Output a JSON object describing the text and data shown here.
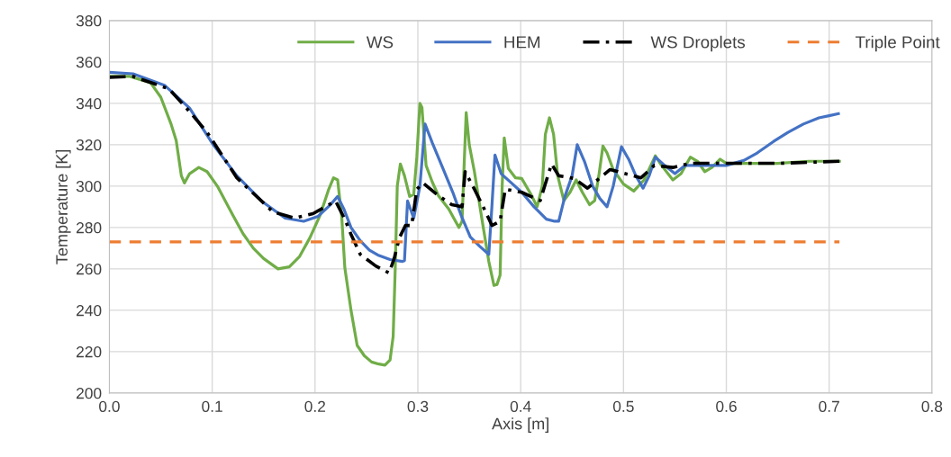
{
  "chart_data": {
    "type": "line",
    "xlabel": "Axis [m]",
    "ylabel": "Temperature [K]",
    "xlim": [
      0,
      0.8
    ],
    "ylim": [
      200,
      380
    ],
    "xticks": [
      {
        "value": 0,
        "label": "0.0"
      },
      0.1,
      0.2,
      0.3,
      0.4,
      0.5,
      0.6,
      0.7,
      0.8
    ],
    "yticks": [
      200,
      220,
      240,
      260,
      280,
      300,
      320,
      340,
      360,
      380
    ],
    "grid": true,
    "legend": "top",
    "marker": "none",
    "series": [
      {
        "name": "WS",
        "color": "#70ad47",
        "line_style": "solid",
        "x": [
          0,
          0.02,
          0.04,
          0.05,
          0.06,
          0.065,
          0.07,
          0.073,
          0.078,
          0.087,
          0.095,
          0.105,
          0.12,
          0.13,
          0.14,
          0.15,
          0.164,
          0.175,
          0.185,
          0.195,
          0.205,
          0.213,
          0.218,
          0.222,
          0.226,
          0.229,
          0.235,
          0.241,
          0.248,
          0.255,
          0.262,
          0.268,
          0.273,
          0.276,
          0.278,
          0.28,
          0.283,
          0.287,
          0.292,
          0.296,
          0.299,
          0.302,
          0.304,
          0.308,
          0.314,
          0.32,
          0.33,
          0.34,
          0.343,
          0.345,
          0.347,
          0.35,
          0.355,
          0.362,
          0.369,
          0.374,
          0.377,
          0.38,
          0.382,
          0.384,
          0.388,
          0.395,
          0.401,
          0.41,
          0.416,
          0.421,
          0.424,
          0.428,
          0.432,
          0.436,
          0.442,
          0.448,
          0.454,
          0.46,
          0.467,
          0.472,
          0.476,
          0.48,
          0.484,
          0.49,
          0.5,
          0.51,
          0.52,
          0.531,
          0.537,
          0.548,
          0.556,
          0.565,
          0.572,
          0.579,
          0.586,
          0.594,
          0.6,
          0.62,
          0.65,
          0.68,
          0.71
        ],
        "values": [
          353,
          353,
          350,
          343,
          330,
          322,
          305,
          301.5,
          306,
          309,
          307,
          300,
          286,
          277,
          270,
          265,
          260,
          261,
          266,
          275,
          286,
          298,
          304,
          303,
          285,
          260.5,
          240,
          223,
          218,
          215,
          214,
          213.5,
          216,
          227.4,
          260,
          300,
          310.7,
          305,
          295,
          296,
          314,
          340,
          338,
          310,
          302,
          295.4,
          289,
          280,
          283,
          310,
          335.5,
          320,
          307,
          285,
          263.6,
          252,
          252.5,
          257,
          300,
          323.3,
          308.5,
          304,
          303.7,
          296,
          290,
          300,
          325,
          333,
          325,
          305,
          293,
          297,
          303,
          297,
          291,
          293,
          305,
          319.4,
          316,
          308,
          301,
          297.6,
          303,
          314.6,
          310,
          303,
          306,
          314,
          312,
          307,
          309,
          313,
          311,
          311,
          311,
          312,
          312
        ]
      },
      {
        "name": "HEM",
        "color": "#4472c4",
        "line_style": "solid",
        "x": [
          0,
          0.023,
          0.054,
          0.078,
          0.101,
          0.124,
          0.148,
          0.171,
          0.189,
          0.203,
          0.215,
          0.222,
          0.228,
          0.235,
          0.244,
          0.253,
          0.261,
          0.273,
          0.285,
          0.287,
          0.29,
          0.296,
          0.302,
          0.307,
          0.314,
          0.324,
          0.334,
          0.342,
          0.351,
          0.36,
          0.369,
          0.372,
          0.375,
          0.381,
          0.391,
          0.401,
          0.413,
          0.425,
          0.433,
          0.437,
          0.443,
          0.45,
          0.455,
          0.462,
          0.47,
          0.477,
          0.484,
          0.49,
          0.498,
          0.505,
          0.512,
          0.519,
          0.525,
          0.531,
          0.54,
          0.55,
          0.56,
          0.58,
          0.6,
          0.617,
          0.63,
          0.646,
          0.66,
          0.675,
          0.69,
          0.7,
          0.709
        ],
        "values": [
          355,
          354.3,
          348.6,
          337.7,
          320,
          305,
          292.8,
          284.5,
          283,
          285.4,
          291,
          295,
          289,
          280,
          273.6,
          269,
          266.7,
          264.5,
          263.6,
          264,
          292.8,
          284.5,
          300,
          330,
          321,
          309,
          297,
          286,
          275.4,
          271,
          267,
          290,
          315,
          306,
          301.5,
          297,
          290,
          284,
          283,
          283,
          295,
          305,
          320,
          312,
          300,
          294,
          290,
          300,
          319,
          313,
          305,
          299,
          305,
          314,
          310,
          306,
          310,
          310,
          310,
          312.4,
          316,
          321.6,
          326,
          330,
          333,
          334,
          335
        ]
      },
      {
        "name": "WS Droplets",
        "color": "#000000",
        "line_style": "dashdot",
        "x": [
          0,
          0.023,
          0.058,
          0.078,
          0.095,
          0.124,
          0.159,
          0.18,
          0.198,
          0.22,
          0.229,
          0.235,
          0.244,
          0.259,
          0.272,
          0.277,
          0.282,
          0.288,
          0.294,
          0.299,
          0.305,
          0.32,
          0.333,
          0.343,
          0.346,
          0.355,
          0.365,
          0.372,
          0.38,
          0.385,
          0.401,
          0.419,
          0.43,
          0.437,
          0.452,
          0.465,
          0.487,
          0.517,
          0.53,
          0.548,
          0.565,
          0.6,
          0.65,
          0.71
        ],
        "values": [
          352.6,
          353,
          347,
          336,
          326,
          304,
          287.6,
          284.5,
          286.7,
          292.8,
          284,
          276.7,
          267,
          261.4,
          258,
          265,
          275,
          281,
          281,
          298.5,
          301.5,
          295.4,
          291,
          290,
          307,
          298.5,
          288.5,
          281,
          283,
          298.5,
          297,
          293,
          310.7,
          305,
          303.7,
          299,
          308,
          304,
          310,
          309,
          311,
          311,
          311,
          312
        ]
      },
      {
        "name": "Triple Point",
        "color": "#ed7d31",
        "line_style": "dashed",
        "x": [
          0,
          0.71
        ],
        "values": [
          273,
          273
        ]
      }
    ]
  }
}
